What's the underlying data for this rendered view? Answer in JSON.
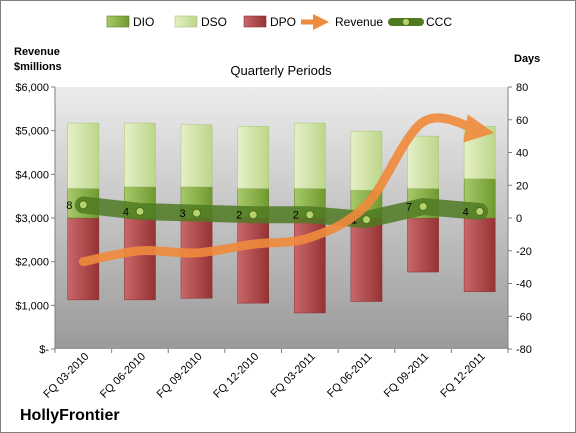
{
  "chart_data": {
    "type": "bar",
    "title": "Quarterly Periods",
    "company": "HollyFrontier",
    "left_axis_title": [
      "Revenue",
      "$millions"
    ],
    "right_axis_title": "Days",
    "categories": [
      "FQ 03-2010",
      "FQ 06-2010",
      "FQ 09-2010",
      "FQ 12-2010",
      "FQ 03-2011",
      "FQ 06-2011",
      "FQ 09-2011",
      "FQ 12-2011"
    ],
    "left_ticks": [
      "$-",
      "$1,000",
      "$2,000",
      "$3,000",
      "$4,000",
      "$5,000",
      "$6,000"
    ],
    "right_ticks": [
      "-80",
      "-60",
      "-40",
      "-20",
      "0",
      "20",
      "40",
      "60",
      "80"
    ],
    "left_ylim": [
      0,
      6000
    ],
    "right_ylim": [
      -80,
      80
    ],
    "legend_position": "top",
    "grid": false,
    "series": [
      {
        "name": "DIO",
        "type": "stacked-bar",
        "color": "#8fb54a",
        "values": [
          18,
          19,
          19,
          18,
          18,
          17,
          18,
          24
        ]
      },
      {
        "name": "DSO",
        "type": "stacked-bar",
        "color": "#d4e6a8",
        "values": [
          40,
          39,
          38,
          38,
          40,
          36,
          32,
          32
        ]
      },
      {
        "name": "DPO",
        "type": "stacked-bar",
        "color": "#b5484a",
        "values": [
          -50,
          -50,
          -49,
          -52,
          -58,
          -51,
          -33,
          -45
        ]
      },
      {
        "name": "Revenue",
        "type": "line",
        "color": "#f08a3c",
        "values": [
          2000,
          2250,
          2200,
          2400,
          2550,
          3300,
          5200,
          5000
        ]
      },
      {
        "name": "CCC",
        "type": "line",
        "color": "#5f8a2a",
        "values": [
          8,
          4,
          3,
          2,
          2,
          -1,
          7,
          4
        ]
      }
    ],
    "ccc_labels": [
      "8",
      "4",
      "3",
      "2",
      "2",
      "-1",
      "7",
      "4"
    ]
  }
}
